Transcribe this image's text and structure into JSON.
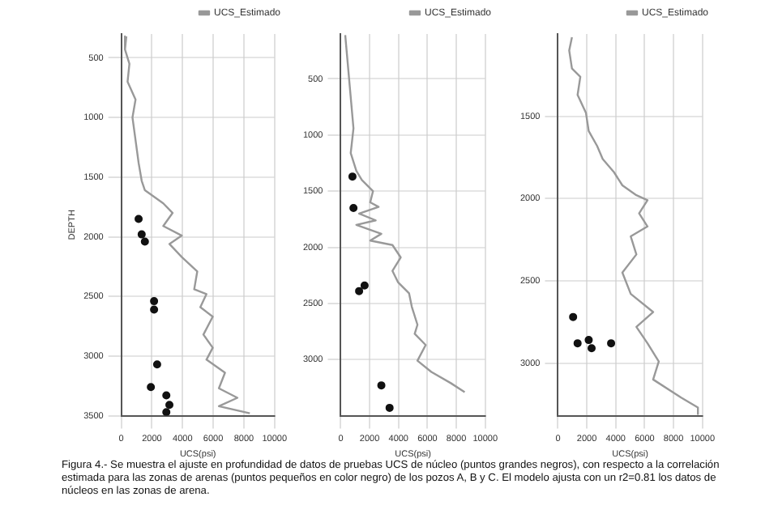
{
  "chart_data": [
    {
      "type": "line",
      "xlabel": "UCS(psi)",
      "ylabel": "DEPTH",
      "xlim": [
        0,
        10000
      ],
      "xticks": [
        0,
        2000,
        4000,
        6000,
        8000,
        10000
      ],
      "ylim": [
        3500,
        300
      ],
      "yticks": [
        500,
        1000,
        1500,
        2000,
        2500,
        3000,
        3500
      ],
      "grid": true,
      "legend": "top right",
      "line_style": "solid",
      "series": [
        {
          "name": "UCS_Estimado",
          "marker": "none",
          "color": "#999999",
          "x": [
            330,
            240,
            530,
            410,
            930,
            730,
            930,
            1130,
            1330,
            1540,
            2740,
            3350,
            2740,
            3950,
            3140,
            3950,
            4960,
            4760,
            5560,
            5160,
            5970,
            5360,
            5970,
            5560,
            6770,
            6370,
            7580,
            6370,
            8390
          ],
          "values": [
            320,
            430,
            550,
            700,
            850,
            1000,
            1190,
            1380,
            1530,
            1610,
            1720,
            1800,
            1910,
            1990,
            2060,
            2170,
            2290,
            2440,
            2480,
            2590,
            2670,
            2820,
            2930,
            3030,
            3140,
            3270,
            3350,
            3420,
            3480
          ]
        },
        {
          "type": "scatter",
          "marker": "circle",
          "color": "#111111",
          "x": [
            1130,
            1330,
            1540,
            2140,
            2140,
            2340,
            1930,
            2940,
            3140,
            2940
          ],
          "values": [
            1850,
            1980,
            2040,
            2540,
            2610,
            3070,
            3260,
            3330,
            3410,
            3470
          ]
        }
      ],
      "annotations": [
        "Figura 4.- Se muestra el ajuste en profundidad de datos de pruebas UCS de núcleo (puntos grandes negros), con respecto a la correlación estimada para las zonas de arenas (puntos pequeños en color negro) de los pozos A, B y C. El modelo ajusta con un r2=0.81 los datos de núcleos en las zonas de arena."
      ]
    },
    {
      "type": "line",
      "xlabel": "UCS(psi)",
      "xlim": [
        0,
        10000
      ],
      "xticks": [
        0,
        2000,
        4000,
        6000,
        8000,
        10000
      ],
      "ylim": [
        3500,
        100
      ],
      "yticks": [
        500,
        1000,
        1500,
        2000,
        2500,
        3000
      ],
      "grid": true,
      "legend": "top right",
      "line_style": "solid",
      "series": [
        {
          "name": "UCS_Estimado",
          "marker": "none",
          "color": "#999999",
          "x": [
            310,
            880,
            690,
            1080,
            1460,
            2230,
            2040,
            2620,
            1270,
            2420,
            1080,
            2810,
            2040,
            3580,
            4150,
            3580,
            3960,
            4730,
            4920,
            5310,
            5120,
            5880,
            5310,
            6270,
            7620,
            8580
          ],
          "values": [
            110,
            940,
            1160,
            1320,
            1400,
            1500,
            1600,
            1640,
            1700,
            1760,
            1800,
            1880,
            1940,
            1980,
            2090,
            2210,
            2310,
            2410,
            2530,
            2690,
            2770,
            2870,
            3010,
            3110,
            3210,
            3290
          ]
        },
        {
          "type": "scatter",
          "marker": "circle",
          "color": "#111111",
          "x": [
            810,
            880,
            1650,
            1270,
            2810,
            3380
          ],
          "values": [
            1370,
            1650,
            2340,
            2390,
            3230,
            3430
          ]
        }
      ]
    },
    {
      "type": "line",
      "xlabel": "UCS(psi)",
      "xlim": [
        0,
        10000
      ],
      "xticks": [
        0,
        2000,
        4000,
        6000,
        8000,
        10000
      ],
      "ylim": [
        3320,
        1000
      ],
      "yticks": [
        1500,
        2000,
        2500,
        3000
      ],
      "grid": true,
      "legend": "top right",
      "line_style": "solid",
      "series": [
        {
          "name": "UCS_Estimado",
          "marker": "none",
          "color": "#999999",
          "x": [
            970,
            780,
            970,
            1550,
            1360,
            1940,
            2130,
            2710,
            3100,
            3880,
            4460,
            5430,
            6200,
            5620,
            6200,
            5040,
            5430,
            4460,
            5040,
            6590,
            5430,
            6200,
            6980,
            6590,
            8530,
            9690,
            9690
          ],
          "values": [
            1020,
            1100,
            1210,
            1260,
            1370,
            1480,
            1590,
            1680,
            1760,
            1840,
            1920,
            1980,
            2010,
            2090,
            2170,
            2230,
            2340,
            2450,
            2580,
            2690,
            2780,
            2880,
            2990,
            3100,
            3210,
            3270,
            3310
          ]
        },
        {
          "type": "scatter",
          "marker": "circle",
          "color": "#111111",
          "x": [
            1050,
            1360,
            2130,
            3680,
            2330
          ],
          "values": [
            2720,
            2880,
            2860,
            2880,
            2910
          ]
        }
      ]
    }
  ]
}
